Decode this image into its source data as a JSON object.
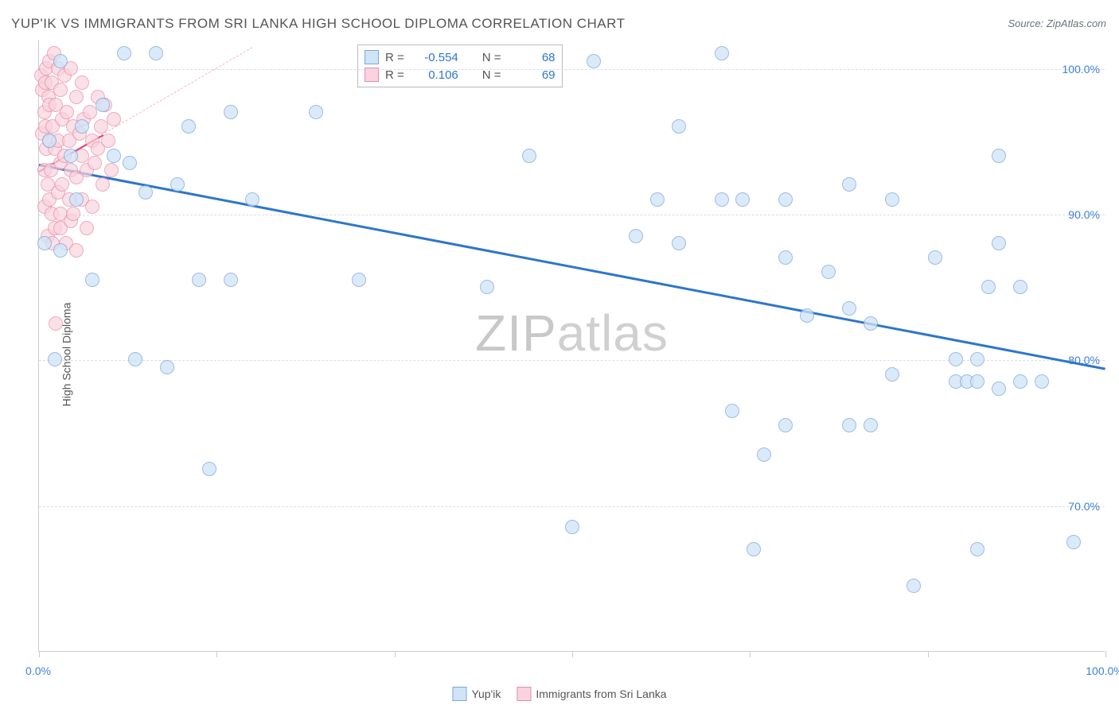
{
  "title": "YUP'IK VS IMMIGRANTS FROM SRI LANKA HIGH SCHOOL DIPLOMA CORRELATION CHART",
  "source": "Source: ZipAtlas.com",
  "y_axis_label": "High School Diploma",
  "watermark_bold": "ZIP",
  "watermark_light": "atlas",
  "chart": {
    "type": "scatter",
    "xlim": [
      0,
      100
    ],
    "ylim": [
      60,
      102
    ],
    "y_ticks": [
      70,
      80,
      90,
      100
    ],
    "y_tick_labels": [
      "70.0%",
      "80.0%",
      "90.0%",
      "100.0%"
    ],
    "x_ticks": [
      0,
      16.67,
      33.33,
      50,
      66.67,
      83.33,
      100
    ],
    "x_tick_labels_visible": {
      "0": "0.0%",
      "100": "100.0%"
    },
    "x_label_color": "#3b82d6",
    "y_label_color": "#3b82d6",
    "grid_color": "#dddddd",
    "background_color": "#ffffff",
    "border_color": "#cccccc",
    "point_radius": 9,
    "series": [
      {
        "name": "Yup'ik",
        "fill": "#cfe4f7",
        "stroke": "#7aa8d8",
        "stroke_width": 1,
        "opacity": 0.75,
        "trend": {
          "x1": 0,
          "y1": 93.5,
          "x2": 100,
          "y2": 79.5,
          "color": "#2d76cc",
          "width": 2.5
        },
        "points": [
          [
            0.5,
            88
          ],
          [
            1,
            95
          ],
          [
            1.5,
            80
          ],
          [
            2,
            100.5
          ],
          [
            2,
            87.5
          ],
          [
            3,
            94
          ],
          [
            3.5,
            91
          ],
          [
            4,
            96
          ],
          [
            5,
            85.5
          ],
          [
            6,
            97.5
          ],
          [
            7,
            94
          ],
          [
            8,
            101
          ],
          [
            8.5,
            93.5
          ],
          [
            9,
            80
          ],
          [
            10,
            91.5
          ],
          [
            11,
            101
          ],
          [
            12,
            79.5
          ],
          [
            13,
            92
          ],
          [
            14,
            96
          ],
          [
            15,
            85.5
          ],
          [
            16,
            72.5
          ],
          [
            18,
            97
          ],
          [
            18,
            85.5
          ],
          [
            20,
            91
          ],
          [
            26,
            97
          ],
          [
            30,
            85.5
          ],
          [
            42,
            85
          ],
          [
            46,
            94
          ],
          [
            50,
            68.5
          ],
          [
            52,
            100.5
          ],
          [
            56,
            88.5
          ],
          [
            58,
            91
          ],
          [
            60,
            96
          ],
          [
            60,
            88
          ],
          [
            64,
            101
          ],
          [
            64,
            91
          ],
          [
            65,
            76.5
          ],
          [
            66,
            91
          ],
          [
            67,
            67
          ],
          [
            68,
            73.5
          ],
          [
            70,
            91
          ],
          [
            70,
            87
          ],
          [
            70,
            75.5
          ],
          [
            72,
            83
          ],
          [
            74,
            86
          ],
          [
            76,
            92
          ],
          [
            76,
            83.5
          ],
          [
            76,
            75.5
          ],
          [
            78,
            82.5
          ],
          [
            78,
            75.5
          ],
          [
            80,
            91
          ],
          [
            80,
            79
          ],
          [
            82,
            64.5
          ],
          [
            84,
            87
          ],
          [
            86,
            80
          ],
          [
            86,
            78.5
          ],
          [
            87,
            78.5
          ],
          [
            88,
            80
          ],
          [
            88,
            78.5
          ],
          [
            88,
            67
          ],
          [
            89,
            85
          ],
          [
            90,
            94
          ],
          [
            90,
            78
          ],
          [
            90,
            88
          ],
          [
            92,
            78.5
          ],
          [
            92,
            85
          ],
          [
            94,
            78.5
          ],
          [
            97,
            67.5
          ]
        ]
      },
      {
        "name": "Immigrants from Sri Lanka",
        "fill": "#f9d3dd",
        "stroke": "#e88aa5",
        "stroke_width": 1,
        "opacity": 0.7,
        "trend": {
          "x1": 0,
          "y1": 93,
          "x2": 6,
          "y2": 95.5,
          "color": "#e23a6e",
          "width": 2
        },
        "trend_dash": {
          "x1": 0,
          "y1": 93,
          "x2": 20,
          "y2": 101.5,
          "color": "#f4b6c7"
        },
        "points": [
          [
            0.2,
            99.5
          ],
          [
            0.3,
            98.5
          ],
          [
            0.3,
            95.5
          ],
          [
            0.5,
            97
          ],
          [
            0.5,
            93
          ],
          [
            0.5,
            90.5
          ],
          [
            0.6,
            99
          ],
          [
            0.6,
            96
          ],
          [
            0.7,
            100
          ],
          [
            0.7,
            94.5
          ],
          [
            0.8,
            92
          ],
          [
            0.8,
            88.5
          ],
          [
            0.9,
            98
          ],
          [
            1.0,
            100.5
          ],
          [
            1.0,
            97.5
          ],
          [
            1.0,
            95
          ],
          [
            1.0,
            91
          ],
          [
            1.1,
            93
          ],
          [
            1.2,
            99
          ],
          [
            1.2,
            90
          ],
          [
            1.3,
            96
          ],
          [
            1.3,
            88
          ],
          [
            1.4,
            101
          ],
          [
            1.5,
            94.5
          ],
          [
            1.5,
            89
          ],
          [
            1.6,
            97.5
          ],
          [
            1.6,
            82.5
          ],
          [
            1.8,
            100
          ],
          [
            1.8,
            95
          ],
          [
            1.8,
            91.5
          ],
          [
            2.0,
            98.5
          ],
          [
            2.0,
            93.5
          ],
          [
            2.0,
            90
          ],
          [
            2.0,
            89
          ],
          [
            2.2,
            96.5
          ],
          [
            2.2,
            92
          ],
          [
            2.4,
            99.5
          ],
          [
            2.4,
            94
          ],
          [
            2.5,
            88
          ],
          [
            2.6,
            97
          ],
          [
            2.8,
            95
          ],
          [
            2.8,
            91
          ],
          [
            3.0,
            100
          ],
          [
            3.0,
            93
          ],
          [
            3.0,
            89.5
          ],
          [
            3.2,
            96
          ],
          [
            3.2,
            90
          ],
          [
            3.5,
            98
          ],
          [
            3.5,
            92.5
          ],
          [
            3.5,
            87.5
          ],
          [
            3.8,
            95.5
          ],
          [
            4.0,
            99
          ],
          [
            4.0,
            94
          ],
          [
            4.0,
            91
          ],
          [
            4.2,
            96.5
          ],
          [
            4.5,
            93
          ],
          [
            4.5,
            89
          ],
          [
            4.8,
            97
          ],
          [
            5.0,
            95
          ],
          [
            5.0,
            90.5
          ],
          [
            5.2,
            93.5
          ],
          [
            5.5,
            98
          ],
          [
            5.5,
            94.5
          ],
          [
            5.8,
            96
          ],
          [
            6.0,
            92
          ],
          [
            6.2,
            97.5
          ],
          [
            6.5,
            95
          ],
          [
            6.8,
            93
          ],
          [
            7.0,
            96.5
          ]
        ]
      }
    ]
  },
  "stats": [
    {
      "swatch_fill": "#cfe4f7",
      "swatch_border": "#7aa8d8",
      "r_label": "R =",
      "r_value": "-0.554",
      "r_color": "#2d76cc",
      "n_label": "N =",
      "n_value": "68",
      "n_color": "#2d76cc"
    },
    {
      "swatch_fill": "#f9d3dd",
      "swatch_border": "#e88aa5",
      "r_label": "R =",
      "r_value": "0.106",
      "r_color": "#2d76cc",
      "n_label": "N =",
      "n_value": "69",
      "n_color": "#2d76cc"
    }
  ],
  "legend": [
    {
      "swatch_fill": "#cfe4f7",
      "swatch_border": "#7aa8d8",
      "label": "Yup'ik"
    },
    {
      "swatch_fill": "#f9d3dd",
      "swatch_border": "#e88aa5",
      "label": "Immigrants from Sri Lanka"
    }
  ]
}
